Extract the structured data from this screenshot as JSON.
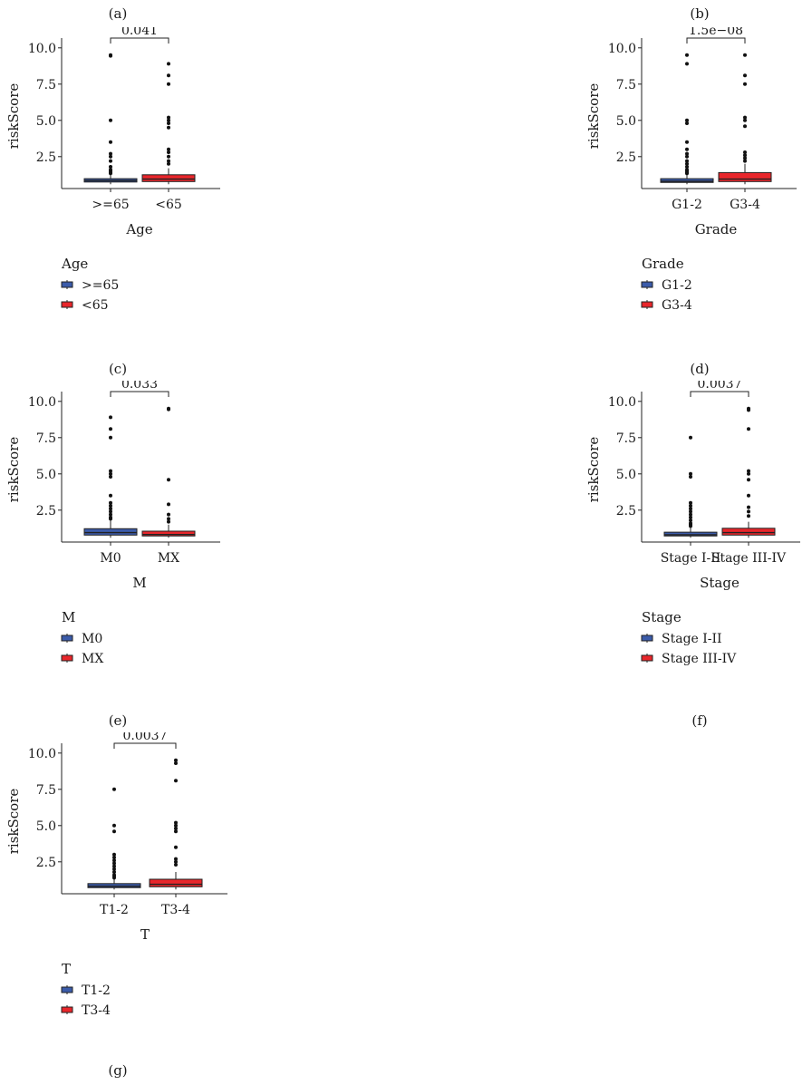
{
  "chart_data": [
    {
      "type": "box",
      "panel": "(a)",
      "ylabel": "riskScore",
      "xlabel": "Age",
      "ylim": [
        0.3,
        10.3
      ],
      "yticks": [
        "2.5",
        "5.0",
        "7.5",
        "10.0"
      ],
      "categories": [
        ">=65",
        "<65"
      ],
      "colors": [
        "#3b5ba9",
        "#e8262b"
      ],
      "boxes": [
        {
          "q1": 0.75,
          "median": 0.85,
          "q3": 0.98,
          "whisker_low": 0.6,
          "whisker_high": 1.3,
          "outliers": [
            9.5,
            9.45,
            5.0,
            3.5,
            2.7,
            2.5,
            2.2,
            1.8,
            1.6,
            1.5,
            1.4,
            1.35
          ]
        },
        {
          "q1": 0.78,
          "median": 0.95,
          "q3": 1.25,
          "whisker_low": 0.6,
          "whisker_high": 1.7,
          "outliers": [
            8.9,
            8.1,
            7.5,
            5.2,
            5.0,
            4.8,
            4.5,
            3.0,
            2.8,
            2.5,
            2.2,
            2.0
          ]
        }
      ],
      "comparison": "0.041",
      "legend_title": "Age",
      "legend": [
        ">=65",
        "<65"
      ]
    },
    {
      "type": "box",
      "panel": "(b)",
      "ylabel": "riskScore",
      "xlabel": "Grade",
      "ylim": [
        0.3,
        10.3
      ],
      "yticks": [
        "2.5",
        "5.0",
        "7.5",
        "10.0"
      ],
      "categories": [
        "G1-2",
        "G3-4"
      ],
      "colors": [
        "#3b5ba9",
        "#e8262b"
      ],
      "boxes": [
        {
          "q1": 0.72,
          "median": 0.8,
          "q3": 0.98,
          "whisker_low": 0.6,
          "whisker_high": 1.3,
          "outliers": [
            9.5,
            8.9,
            5.0,
            4.8,
            3.5,
            3.0,
            2.7,
            2.5,
            2.2,
            2.0,
            1.8,
            1.6,
            1.5,
            1.4,
            1.35
          ]
        },
        {
          "q1": 0.78,
          "median": 0.95,
          "q3": 1.4,
          "whisker_low": 0.6,
          "whisker_high": 2.0,
          "outliers": [
            9.5,
            8.1,
            7.5,
            5.2,
            5.0,
            4.6,
            2.8,
            2.6,
            2.4,
            2.2
          ]
        }
      ],
      "comparison": "1.5e−08",
      "legend_title": "Grade",
      "legend": [
        "G1-2",
        "G3-4"
      ]
    },
    {
      "type": "box",
      "panel": "(c)",
      "ylabel": "riskScore",
      "xlabel": "M",
      "ylim": [
        0.3,
        10.3
      ],
      "yticks": [
        "2.5",
        "5.0",
        "7.5",
        "10.0"
      ],
      "categories": [
        "M0",
        "MX"
      ],
      "colors": [
        "#3b5ba9",
        "#e8262b"
      ],
      "boxes": [
        {
          "q1": 0.78,
          "median": 0.95,
          "q3": 1.22,
          "whisker_low": 0.6,
          "whisker_high": 1.8,
          "outliers": [
            8.9,
            8.1,
            7.5,
            5.2,
            5.0,
            4.8,
            3.5,
            3.0,
            2.8,
            2.6,
            2.4,
            2.2,
            2.0,
            1.9
          ]
        },
        {
          "q1": 0.72,
          "median": 0.82,
          "q3": 1.05,
          "whisker_low": 0.6,
          "whisker_high": 1.5,
          "outliers": [
            9.5,
            9.45,
            4.6,
            2.9,
            2.2,
            1.9,
            1.7
          ]
        }
      ],
      "comparison": "0.033",
      "legend_title": "M",
      "legend": [
        "M0",
        "MX"
      ]
    },
    {
      "type": "box",
      "panel": "(d)",
      "ylabel": "riskScore",
      "xlabel": "Stage",
      "ylim": [
        0.3,
        10.3
      ],
      "yticks": [
        "2.5",
        "5.0",
        "7.5",
        "10.0"
      ],
      "categories": [
        "Stage I-II",
        "Stage III-IV"
      ],
      "colors": [
        "#3b5ba9",
        "#e8262b"
      ],
      "boxes": [
        {
          "q1": 0.72,
          "median": 0.8,
          "q3": 0.98,
          "whisker_low": 0.6,
          "whisker_high": 1.35,
          "outliers": [
            7.5,
            5.0,
            4.8,
            3.0,
            2.8,
            2.6,
            2.4,
            2.2,
            2.0,
            1.8,
            1.6,
            1.5,
            1.4
          ]
        },
        {
          "q1": 0.78,
          "median": 0.95,
          "q3": 1.25,
          "whisker_low": 0.6,
          "whisker_high": 1.7,
          "outliers": [
            9.5,
            9.4,
            8.1,
            5.2,
            5.0,
            4.6,
            3.5,
            2.7,
            2.4,
            2.1
          ]
        }
      ],
      "comparison": "0.0037",
      "legend_title": "Stage",
      "legend": [
        "Stage I-II",
        "Stage III-IV"
      ]
    },
    {
      "type": "box",
      "panel": "(e)",
      "ylabel": "riskScore",
      "xlabel": "T",
      "ylim": [
        0.3,
        10.3
      ],
      "yticks": [
        "2.5",
        "5.0",
        "7.5",
        "10.0"
      ],
      "categories": [
        "T1-2",
        "T3-4"
      ],
      "colors": [
        "#3b5ba9",
        "#e8262b"
      ],
      "boxes": [
        {
          "q1": 0.72,
          "median": 0.82,
          "q3": 1.0,
          "whisker_low": 0.6,
          "whisker_high": 1.35,
          "outliers": [
            7.5,
            5.0,
            4.6,
            3.0,
            2.8,
            2.6,
            2.4,
            2.2,
            2.0,
            1.8,
            1.6,
            1.5,
            1.4
          ]
        },
        {
          "q1": 0.78,
          "median": 0.95,
          "q3": 1.3,
          "whisker_low": 0.6,
          "whisker_high": 1.8,
          "outliers": [
            9.5,
            9.3,
            8.1,
            5.2,
            5.0,
            4.8,
            4.6,
            3.5,
            2.7,
            2.5,
            2.3
          ]
        }
      ],
      "comparison": "0.0037",
      "legend_title": "T",
      "legend": [
        "T1-2",
        "T3-4"
      ]
    }
  ],
  "panel_labels": [
    "(a)",
    "(b)",
    "(c)",
    "(d)",
    "(e)",
    "(f)",
    "(g)"
  ]
}
